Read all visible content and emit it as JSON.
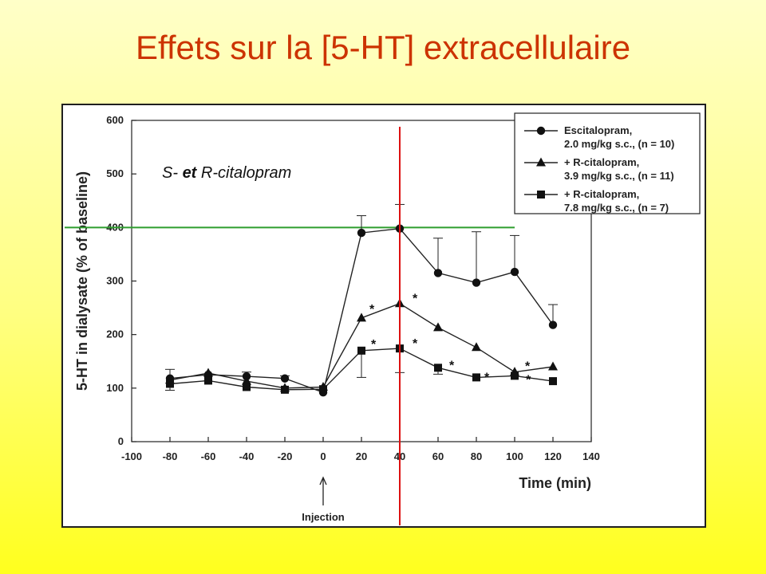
{
  "slide": {
    "title": "Effets sur la  [5-HT] extracellulaire"
  },
  "chart_data": {
    "type": "line",
    "xlabel": "Time (min)",
    "ylabel": "5-HT in dialysate (% of baseline)",
    "xlim": [
      -100,
      140
    ],
    "ylim": [
      0,
      600
    ],
    "xticks": [
      -100,
      -80,
      -60,
      -40,
      -20,
      0,
      20,
      40,
      60,
      80,
      100,
      120,
      140
    ],
    "yticks": [
      0,
      100,
      200,
      300,
      400,
      500,
      600
    ],
    "grid": false,
    "legend_placement": "top-right",
    "annotation": {
      "prefix": "S- ",
      "bold": "et",
      "suffix": " R-citalopram"
    },
    "injection_label": "Injection",
    "injection_time": 0,
    "reference_line_y": 400,
    "reference_line_color": "#2e9e2e",
    "vertical_marker_x": 40,
    "vertical_marker_color": "#dd1111",
    "series": [
      {
        "name": "Escitalopram,",
        "name_line2": "2.0 mg/kg s.c., (n = 10)",
        "marker": "circle",
        "x": [
          -80,
          -60,
          -40,
          -20,
          0,
          20,
          40,
          60,
          80,
          100,
          120
        ],
        "y": [
          118,
          125,
          122,
          118,
          92,
          390,
          398,
          315,
          297,
          317,
          218
        ],
        "error_up": [
          17,
          0,
          8,
          5,
          0,
          32,
          45,
          65,
          95,
          68,
          38
        ]
      },
      {
        "name": "+ R-citalopram,",
        "name_line2": "3.9 mg/kg s.c., (n = 11)",
        "marker": "triangle",
        "x": [
          -80,
          -60,
          -40,
          -20,
          0,
          20,
          40,
          60,
          80,
          100,
          120
        ],
        "y": [
          115,
          128,
          113,
          100,
          102,
          231,
          258,
          213,
          176,
          130,
          140
        ],
        "error_up": [
          0,
          0,
          0,
          0,
          0,
          0,
          0,
          0,
          0,
          0,
          0
        ],
        "significant_x": [
          20,
          40,
          100
        ]
      },
      {
        "name": "+ R-citalopram,",
        "name_line2": "7.8 mg/kg s.c., (n = 7)",
        "marker": "square",
        "x": [
          -80,
          -60,
          -40,
          -20,
          0,
          20,
          40,
          60,
          80,
          100,
          120
        ],
        "y": [
          108,
          114,
          102,
          97,
          98,
          170,
          174,
          138,
          120,
          123,
          113
        ],
        "error_down": [
          12,
          0,
          0,
          0,
          0,
          50,
          45,
          12,
          0,
          0,
          0
        ],
        "significant_x": [
          20,
          40,
          60,
          80,
          100
        ]
      }
    ]
  }
}
